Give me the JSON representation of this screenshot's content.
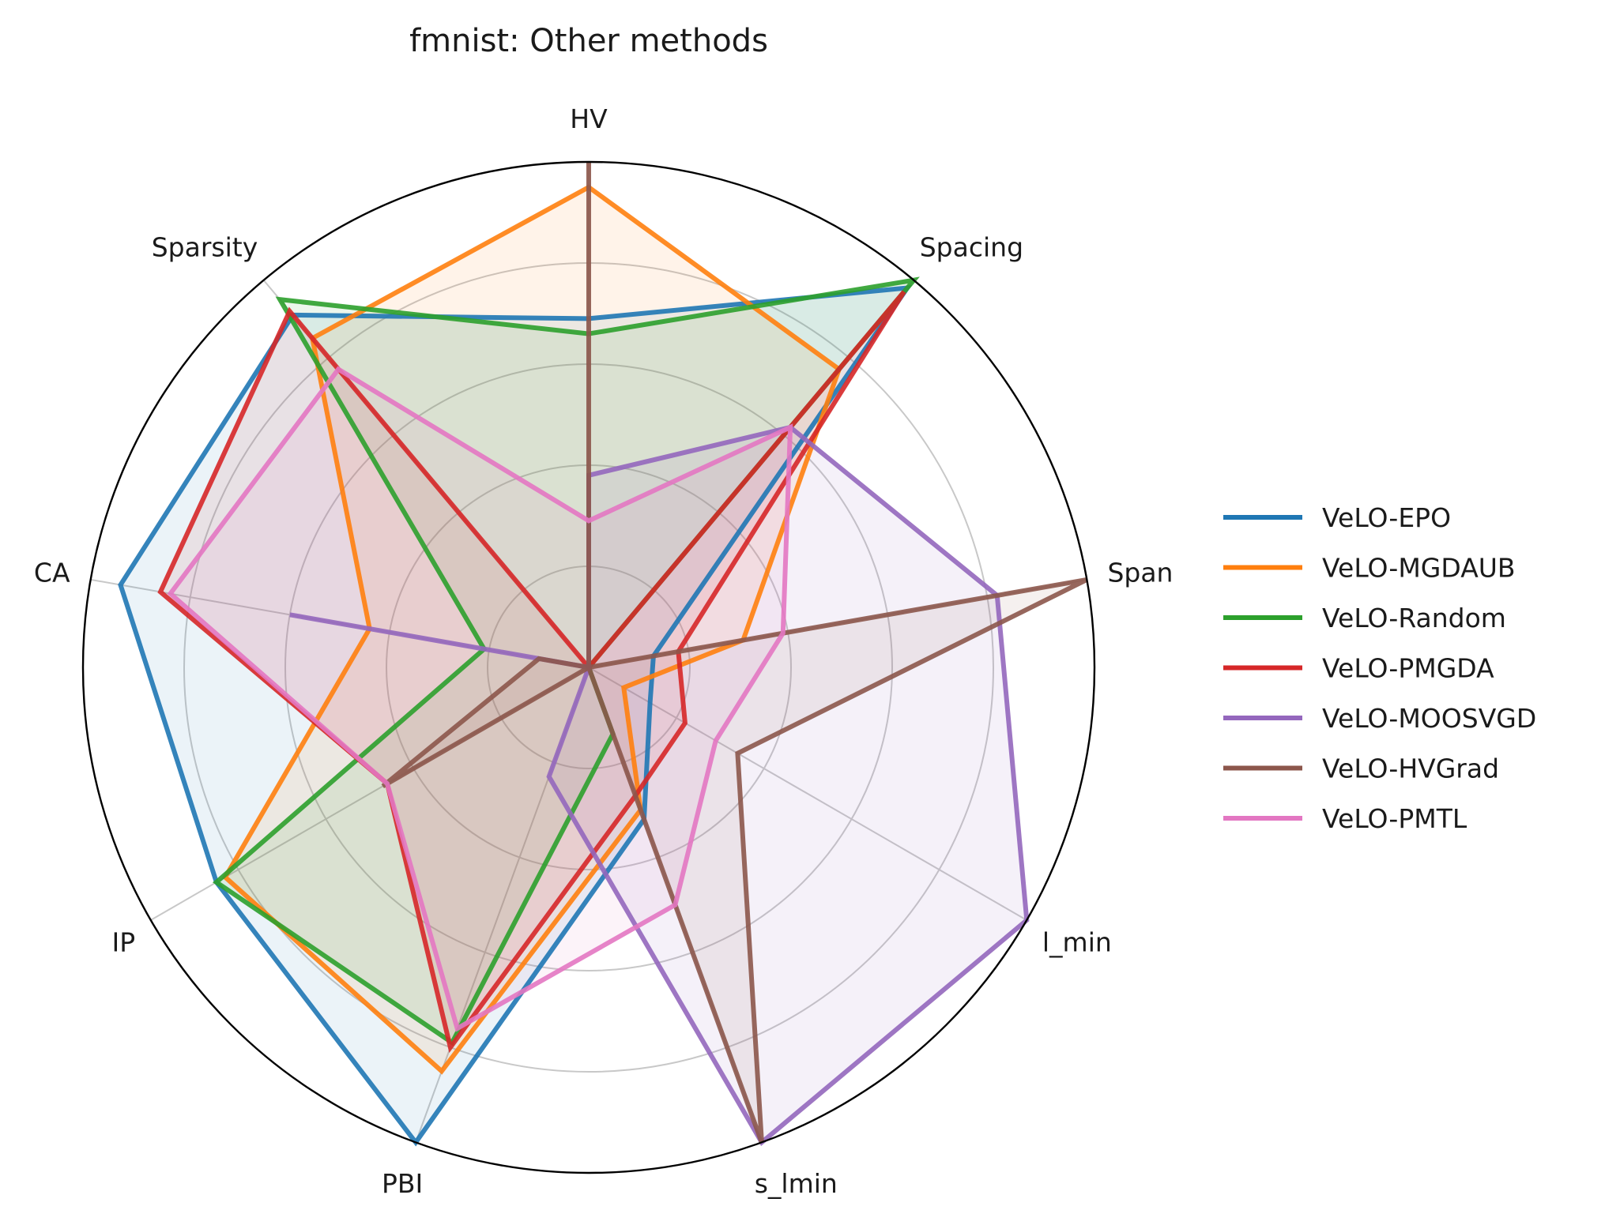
{
  "chart_data": {
    "type": "radar",
    "title": "fmnist: Other methods",
    "axes": [
      "HV",
      "Spacing",
      "Span",
      "l_min",
      "s_lmin",
      "PBI",
      "IP",
      "CA",
      "Sparsity"
    ],
    "rmax": 1.0,
    "rgrid": [
      0.2,
      0.4,
      0.6,
      0.8,
      1.0
    ],
    "grid": true,
    "legend_position": "right",
    "series": [
      {
        "name": "VeLO-EPO",
        "color": "#1f77b4",
        "values": [
          0.69,
          0.98,
          0.13,
          0.14,
          0.32,
          1.0,
          0.85,
          0.94,
          0.91
        ]
      },
      {
        "name": "VeLO-MGDAUB",
        "color": "#ff7f0e",
        "values": [
          0.95,
          0.77,
          0.31,
          0.08,
          0.3,
          0.85,
          0.83,
          0.44,
          0.85
        ]
      },
      {
        "name": "VeLO-Random",
        "color": "#2ca02c",
        "values": [
          0.66,
          1.0,
          0.0,
          0.0,
          0.14,
          0.79,
          0.85,
          0.21,
          0.95
        ]
      },
      {
        "name": "VeLO-PMGDA",
        "color": "#d62728",
        "values": [
          0.0,
          0.97,
          0.18,
          0.22,
          0.27,
          0.8,
          0.46,
          0.86,
          0.92
        ]
      },
      {
        "name": "VeLO-MOOSVGD",
        "color": "#9467bd",
        "values": [
          0.38,
          0.62,
          0.82,
          1.0,
          1.0,
          0.23,
          0.0,
          0.6,
          0.0
        ]
      },
      {
        "name": "VeLO-HVGrad",
        "color": "#8c564b",
        "values": [
          1.0,
          0.0,
          1.0,
          0.34,
          1.0,
          0.0,
          0.47,
          0.1,
          0.0
        ]
      },
      {
        "name": "VeLO-PMTL",
        "color": "#e377c2",
        "values": [
          0.29,
          0.62,
          0.39,
          0.29,
          0.5,
          0.76,
          0.46,
          0.84,
          0.77
        ]
      }
    ]
  }
}
